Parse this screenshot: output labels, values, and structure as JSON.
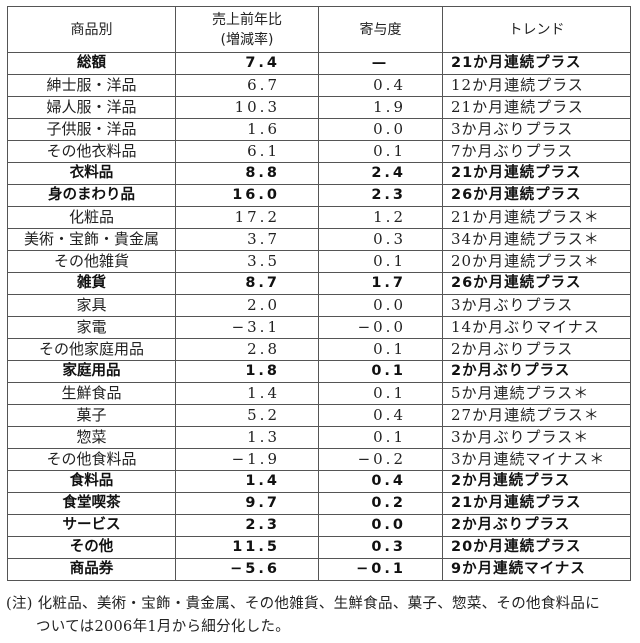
{
  "headers": {
    "category": "商品別",
    "yoy_line1": "売上前年比",
    "yoy_line2": "(増減率)",
    "contribution": "寄与度",
    "trend": "トレンド"
  },
  "rows": [
    {
      "category": "総額",
      "yoy": "7.4",
      "contribution": "—",
      "trend": "21か月連続プラス",
      "bold": true
    },
    {
      "category": "紳士服・洋品",
      "yoy": "6.7",
      "contribution": "0.4",
      "trend": "12か月連続プラス",
      "bold": false
    },
    {
      "category": "婦人服・洋品",
      "yoy": "10.3",
      "contribution": "1.9",
      "trend": "21か月連続プラス",
      "bold": false
    },
    {
      "category": "子供服・洋品",
      "yoy": "1.6",
      "contribution": "0.0",
      "trend": "3か月ぶりプラス",
      "bold": false
    },
    {
      "category": "その他衣料品",
      "yoy": "6.1",
      "contribution": "0.1",
      "trend": "7か月ぶりプラス",
      "bold": false
    },
    {
      "category": "衣料品",
      "yoy": "8.8",
      "contribution": "2.4",
      "trend": "21か月連続プラス",
      "bold": true
    },
    {
      "category": "身のまわり品",
      "yoy": "16.0",
      "contribution": "2.3",
      "trend": "26か月連続プラス",
      "bold": true
    },
    {
      "category": "化粧品",
      "yoy": "17.2",
      "contribution": "1.2",
      "trend": "21か月連続プラス＊",
      "bold": false
    },
    {
      "category": "美術・宝飾・貴金属",
      "yoy": "3.7",
      "contribution": "0.3",
      "trend": "34か月連続プラス＊",
      "bold": false
    },
    {
      "category": "その他雑貨",
      "yoy": "3.5",
      "contribution": "0.1",
      "trend": "20か月連続プラス＊",
      "bold": false
    },
    {
      "category": "雑貨",
      "yoy": "8.7",
      "contribution": "1.7",
      "trend": "26か月連続プラス",
      "bold": true
    },
    {
      "category": "家具",
      "yoy": "2.0",
      "contribution": "0.0",
      "trend": "3か月ぶりプラス",
      "bold": false
    },
    {
      "category": "家電",
      "yoy": "−3.1",
      "contribution": "−0.0",
      "trend": "14か月ぶりマイナス",
      "bold": false
    },
    {
      "category": "その他家庭用品",
      "yoy": "2.8",
      "contribution": "0.1",
      "trend": "2か月ぶりプラス",
      "bold": false
    },
    {
      "category": "家庭用品",
      "yoy": "1.8",
      "contribution": "0.1",
      "trend": "2か月ぶりプラス",
      "bold": true
    },
    {
      "category": "生鮮食品",
      "yoy": "1.4",
      "contribution": "0.1",
      "trend": "5か月連続プラス＊",
      "bold": false
    },
    {
      "category": "菓子",
      "yoy": "5.2",
      "contribution": "0.4",
      "trend": "27か月連続プラス＊",
      "bold": false
    },
    {
      "category": "惣菜",
      "yoy": "1.3",
      "contribution": "0.1",
      "trend": "3か月ぶりプラス＊",
      "bold": false
    },
    {
      "category": "その他食料品",
      "yoy": "−1.9",
      "contribution": "−0.2",
      "trend": "3か月連続マイナス＊",
      "bold": false
    },
    {
      "category": "食料品",
      "yoy": "1.4",
      "contribution": "0.4",
      "trend": "2か月連続プラス",
      "bold": true
    },
    {
      "category": "食堂喫茶",
      "yoy": "9.7",
      "contribution": "0.2",
      "trend": "21か月連続プラス",
      "bold": true
    },
    {
      "category": "サービス",
      "yoy": "2.3",
      "contribution": "0.0",
      "trend": "2か月ぶりプラス",
      "bold": true
    },
    {
      "category": "その他",
      "yoy": "11.5",
      "contribution": "0.3",
      "trend": "20か月連続プラス",
      "bold": true
    },
    {
      "category": "商品券",
      "yoy": "−5.6",
      "contribution": "−0.1",
      "trend": "9か月連続マイナス",
      "bold": true
    }
  ],
  "note": {
    "line1": "(注) 化粧品、美術・宝飾・貴金属、その他雑貨、生鮮食品、菓子、惣菜、その他食料品に",
    "line2": "ついては2006年1月から細分化した。"
  }
}
